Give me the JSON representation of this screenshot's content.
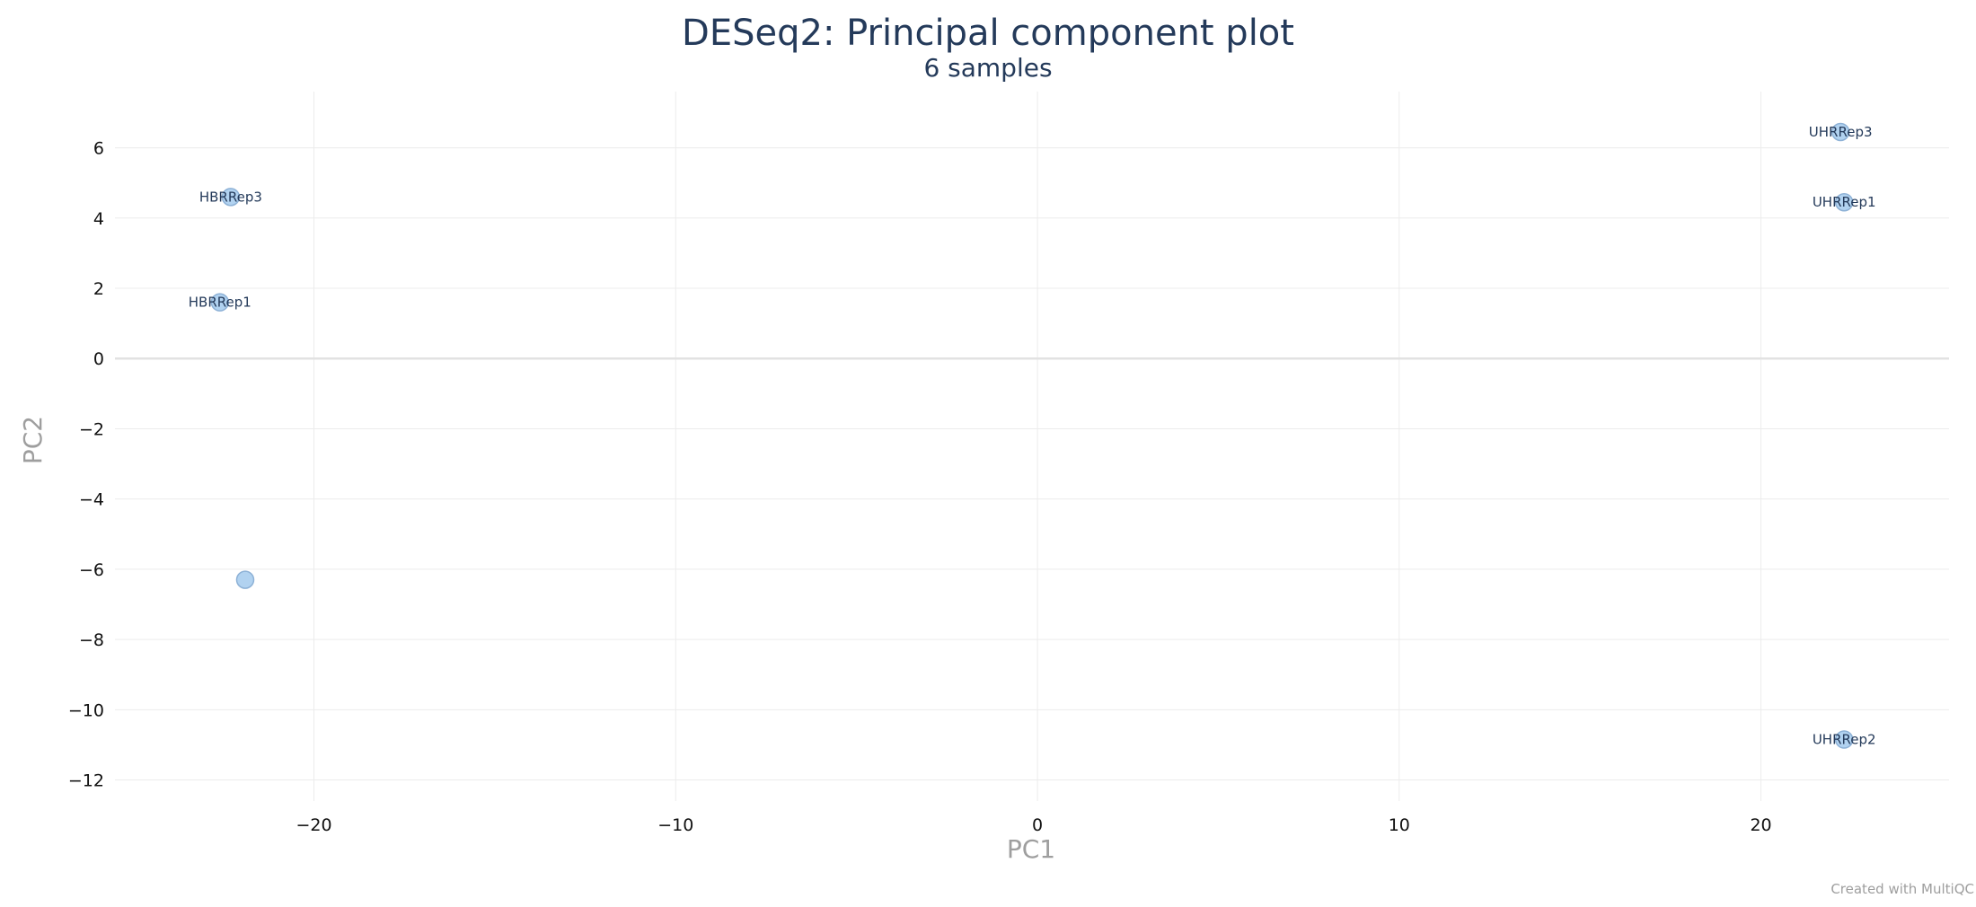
{
  "chart_data": {
    "type": "scatter",
    "title": "DESeq2: Principal component plot",
    "subtitle": "6 samples",
    "xlabel": "PC1",
    "ylabel": "PC2",
    "xlim": [
      -25.5,
      25.2
    ],
    "ylim": [
      -12.6,
      7.6
    ],
    "xticks": [
      -20,
      -10,
      0,
      10,
      20
    ],
    "xtick_labels": [
      "−20",
      "−10",
      "0",
      "10",
      "20"
    ],
    "yticks": [
      6,
      4,
      2,
      0,
      -2,
      -4,
      -6,
      -8,
      -10,
      -12
    ],
    "ytick_labels": [
      "6",
      "4",
      "2",
      "0",
      "−2",
      "−4",
      "−6",
      "−8",
      "−10",
      "−12"
    ],
    "grid": true,
    "legend": "none",
    "point_color": "#a9cdee",
    "point_stroke": "#8db1d6",
    "points": [
      {
        "label": "UHRRep3",
        "x": 22.2,
        "y": 6.45
      },
      {
        "label": "HBRRep3",
        "x": -22.3,
        "y": 4.6
      },
      {
        "label": "UHRRep1",
        "x": 22.3,
        "y": 4.45
      },
      {
        "label": "HBRRep1",
        "x": -22.6,
        "y": 1.6
      },
      {
        "label": "",
        "x": -21.9,
        "y": -6.3
      },
      {
        "label": "UHRRep2",
        "x": 22.3,
        "y": -10.85
      }
    ]
  },
  "credit": "Created with MultiQC"
}
